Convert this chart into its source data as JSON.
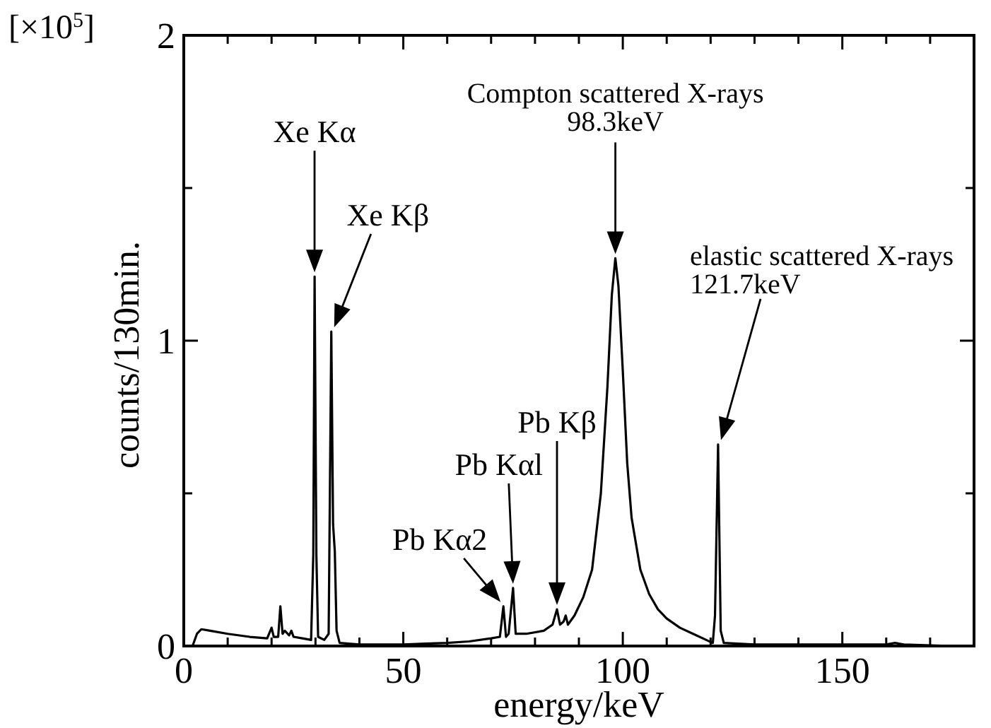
{
  "chart_data": {
    "type": "line",
    "xlabel": "energy/keV",
    "ylabel": "counts/130min.",
    "xlim": [
      0,
      180
    ],
    "ylim": [
      0,
      2
    ],
    "xticks": [
      0,
      {
        "value": 10,
        "label": null
      },
      {
        "value": 20,
        "label": null
      },
      {
        "value": 30,
        "label": null
      },
      {
        "value": 40,
        "label": null
      },
      50,
      {
        "value": 60,
        "label": null
      },
      {
        "value": 70,
        "label": null
      },
      {
        "value": 80,
        "label": null
      },
      {
        "value": 90,
        "label": null
      },
      100,
      {
        "value": 110,
        "label": null
      },
      {
        "value": 120,
        "label": null
      },
      {
        "value": 130,
        "label": null
      },
      {
        "value": 140,
        "label": null
      },
      150,
      {
        "value": 160,
        "label": null
      },
      {
        "value": 170,
        "label": null
      }
    ],
    "yticks": [
      0,
      {
        "value": 0.5,
        "label": null
      },
      1,
      {
        "value": 1.5,
        "label": null
      },
      2
    ],
    "grid": false,
    "marker": "none",
    "line_style": "solid",
    "x": [
      0,
      2,
      3,
      4,
      6,
      10,
      15,
      19,
      20,
      20.5,
      21.5,
      22,
      22.5,
      23,
      24,
      24.5,
      25,
      27,
      29,
      29.5,
      29.8,
      30.2,
      30.6,
      32,
      33,
      33.6,
      34,
      34.4,
      34.8,
      35.5,
      40,
      50,
      55,
      60,
      65,
      70,
      72,
      72.8,
      73.4,
      74,
      75,
      75.6,
      78,
      82,
      84,
      85,
      85.7,
      86.5,
      87,
      87.5,
      89,
      91,
      93,
      95,
      96.5,
      97.5,
      98.3,
      99,
      100,
      101,
      102,
      104,
      106,
      108,
      110,
      113,
      116,
      119,
      120.5,
      121,
      121.7,
      122.3,
      123,
      130,
      150,
      160,
      162,
      164,
      175,
      180
    ],
    "series": [
      {
        "color": "#000000",
        "values": [
          0,
          0,
          0.04,
          0.055,
          0.05,
          0.04,
          0.03,
          0.025,
          0.06,
          0.03,
          0.03,
          0.13,
          0.04,
          0.05,
          0.035,
          0.05,
          0.03,
          0.025,
          0.02,
          0.3,
          1.21,
          0.3,
          0.03,
          0.02,
          0.04,
          1.03,
          0.4,
          0.31,
          0.05,
          0.01,
          0.005,
          0.005,
          0.008,
          0.01,
          0.015,
          0.025,
          0.03,
          0.13,
          0.03,
          0.04,
          0.19,
          0.04,
          0.04,
          0.05,
          0.07,
          0.12,
          0.07,
          0.08,
          0.1,
          0.07,
          0.1,
          0.16,
          0.25,
          0.5,
          0.85,
          1.15,
          1.27,
          1.18,
          0.9,
          0.6,
          0.42,
          0.25,
          0.17,
          0.12,
          0.09,
          0.06,
          0.04,
          0.02,
          0.01,
          0.1,
          0.66,
          0.05,
          0.01,
          0.005,
          0.005,
          0.005,
          0.01,
          0.005,
          0,
          0
        ]
      }
    ],
    "annotations": [
      "Xe Kα",
      "Xe Kβ",
      "Pb Kα2",
      "Pb Kαl",
      "Pb Kβ",
      "Compton scattered X-rays\n98.3keV",
      "elastic scattered X-rays\n121.7keV",
      "[×10$^{5}$]"
    ]
  }
}
